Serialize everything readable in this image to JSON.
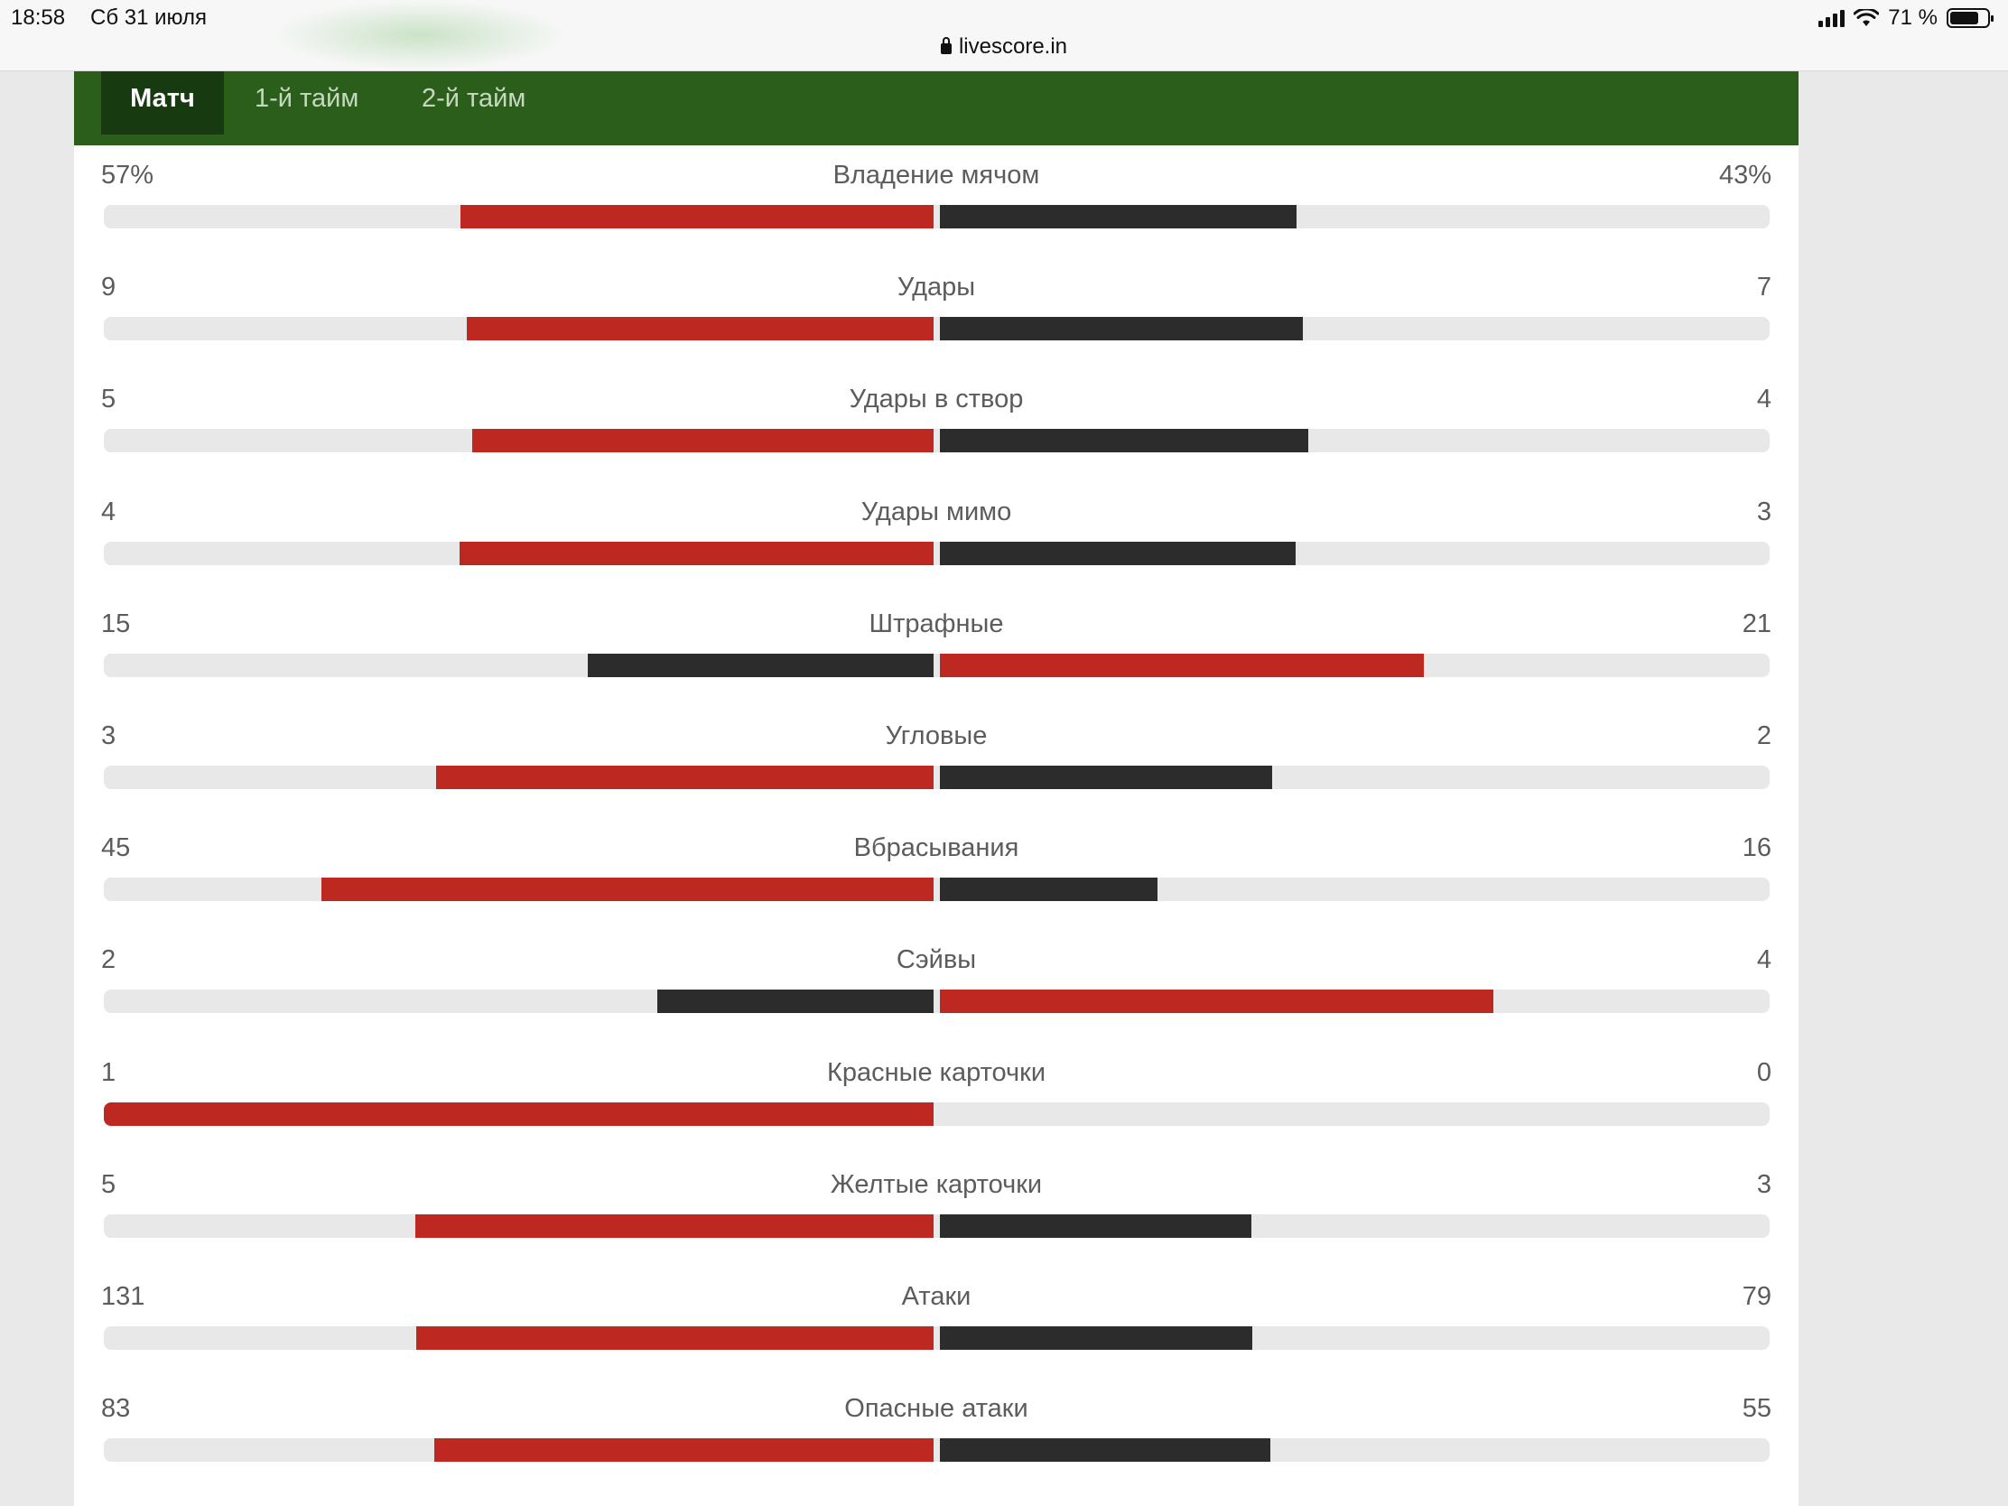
{
  "status_bar": {
    "time": "18:58",
    "date": "Сб 31 июля",
    "battery": "71 %"
  },
  "address_bar": {
    "url": "livescore.in"
  },
  "tabs": [
    {
      "label": "Матч",
      "active": true
    },
    {
      "label": "1-й тайм",
      "active": false
    },
    {
      "label": "2-й тайм",
      "active": false
    }
  ],
  "colors": {
    "leader": "#bd2820",
    "other": "#2c2c2c",
    "track": "#e8e8e8",
    "header": "#2a5e1a",
    "active_tab": "#183a10"
  },
  "stats": [
    {
      "label": "Владение мячом",
      "home": "57%",
      "away": "43%",
      "home_value": 57,
      "away_value": 43
    },
    {
      "label": "Удары",
      "home": "9",
      "away": "7",
      "home_value": 9,
      "away_value": 7
    },
    {
      "label": "Удары в створ",
      "home": "5",
      "away": "4",
      "home_value": 5,
      "away_value": 4
    },
    {
      "label": "Удары мимо",
      "home": "4",
      "away": "3",
      "home_value": 4,
      "away_value": 3
    },
    {
      "label": "Штрафные",
      "home": "15",
      "away": "21",
      "home_value": 15,
      "away_value": 21
    },
    {
      "label": "Угловые",
      "home": "3",
      "away": "2",
      "home_value": 3,
      "away_value": 2
    },
    {
      "label": "Вбрасывания",
      "home": "45",
      "away": "16",
      "home_value": 45,
      "away_value": 16
    },
    {
      "label": "Сэйвы",
      "home": "2",
      "away": "4",
      "home_value": 2,
      "away_value": 4
    },
    {
      "label": "Красные карточки",
      "home": "1",
      "away": "0",
      "home_value": 1,
      "away_value": 0
    },
    {
      "label": "Желтые карточки",
      "home": "5",
      "away": "3",
      "home_value": 5,
      "away_value": 3
    },
    {
      "label": "Атаки",
      "home": "131",
      "away": "79",
      "home_value": 131,
      "away_value": 79
    },
    {
      "label": "Опасные атаки",
      "home": "83",
      "away": "55",
      "home_value": 83,
      "away_value": 55
    }
  ]
}
